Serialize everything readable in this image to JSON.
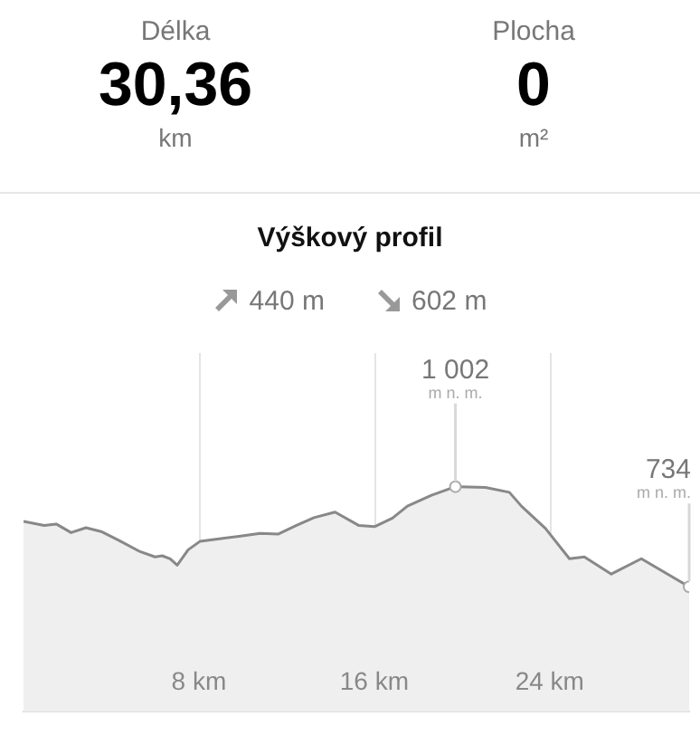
{
  "chart_data": {
    "type": "area",
    "title": "Výškový profil",
    "x": [
      0,
      0.94,
      1.49,
      2.17,
      2.85,
      3.54,
      4.36,
      5.32,
      6.0,
      6.33,
      6.69,
      7.01,
      7.51,
      8.06,
      9.01,
      9.83,
      10.79,
      11.61,
      12.43,
      13.25,
      14.21,
      15.3,
      16.01,
      16.83,
      17.51,
      18.61,
      19.7,
      21.07,
      22.16,
      22.71,
      23.81,
      24.9,
      25.58,
      26.81,
      28.18,
      30.36
    ],
    "series": [
      {
        "color": "#888888",
        "values": [
          909,
          898,
          902,
          879,
          892,
          882,
          858,
          828,
          814,
          817,
          809,
          792,
          833,
          856,
          863,
          869,
          877,
          875,
          898,
          919,
          934,
          898,
          895,
          918,
          950,
          979,
          1002,
          1000,
          987,
          950,
          890,
          809,
          814,
          768,
          809,
          734
        ],
        "value_labels": [
          null,
          null,
          null,
          null,
          null,
          null,
          null,
          null,
          null,
          null,
          null,
          null,
          null,
          null,
          null,
          null,
          null,
          null,
          null,
          null,
          null,
          null,
          null,
          null,
          null,
          null,
          "1 002",
          null,
          null,
          null,
          null,
          null,
          null,
          null,
          null,
          "734"
        ]
      }
    ],
    "xlim": [
      0,
      30.36
    ],
    "ylim": [
      400,
      1360
    ],
    "xticks": [
      {
        "value": 8,
        "label": "8 km"
      },
      {
        "value": 16,
        "label": "16 km"
      },
      {
        "value": 24,
        "label": "24 km"
      }
    ],
    "tick_labels": "x",
    "grid": "x",
    "annotations": [
      "Délka",
      "30,36",
      "km",
      "Plocha",
      "0",
      "m²",
      "440 m",
      "602 m",
      {
        "text": "m n. m.",
        "x": 19.7,
        "y": 1002
      },
      {
        "text": "m n. m.",
        "x": 30.36,
        "y": 734
      }
    ]
  }
}
